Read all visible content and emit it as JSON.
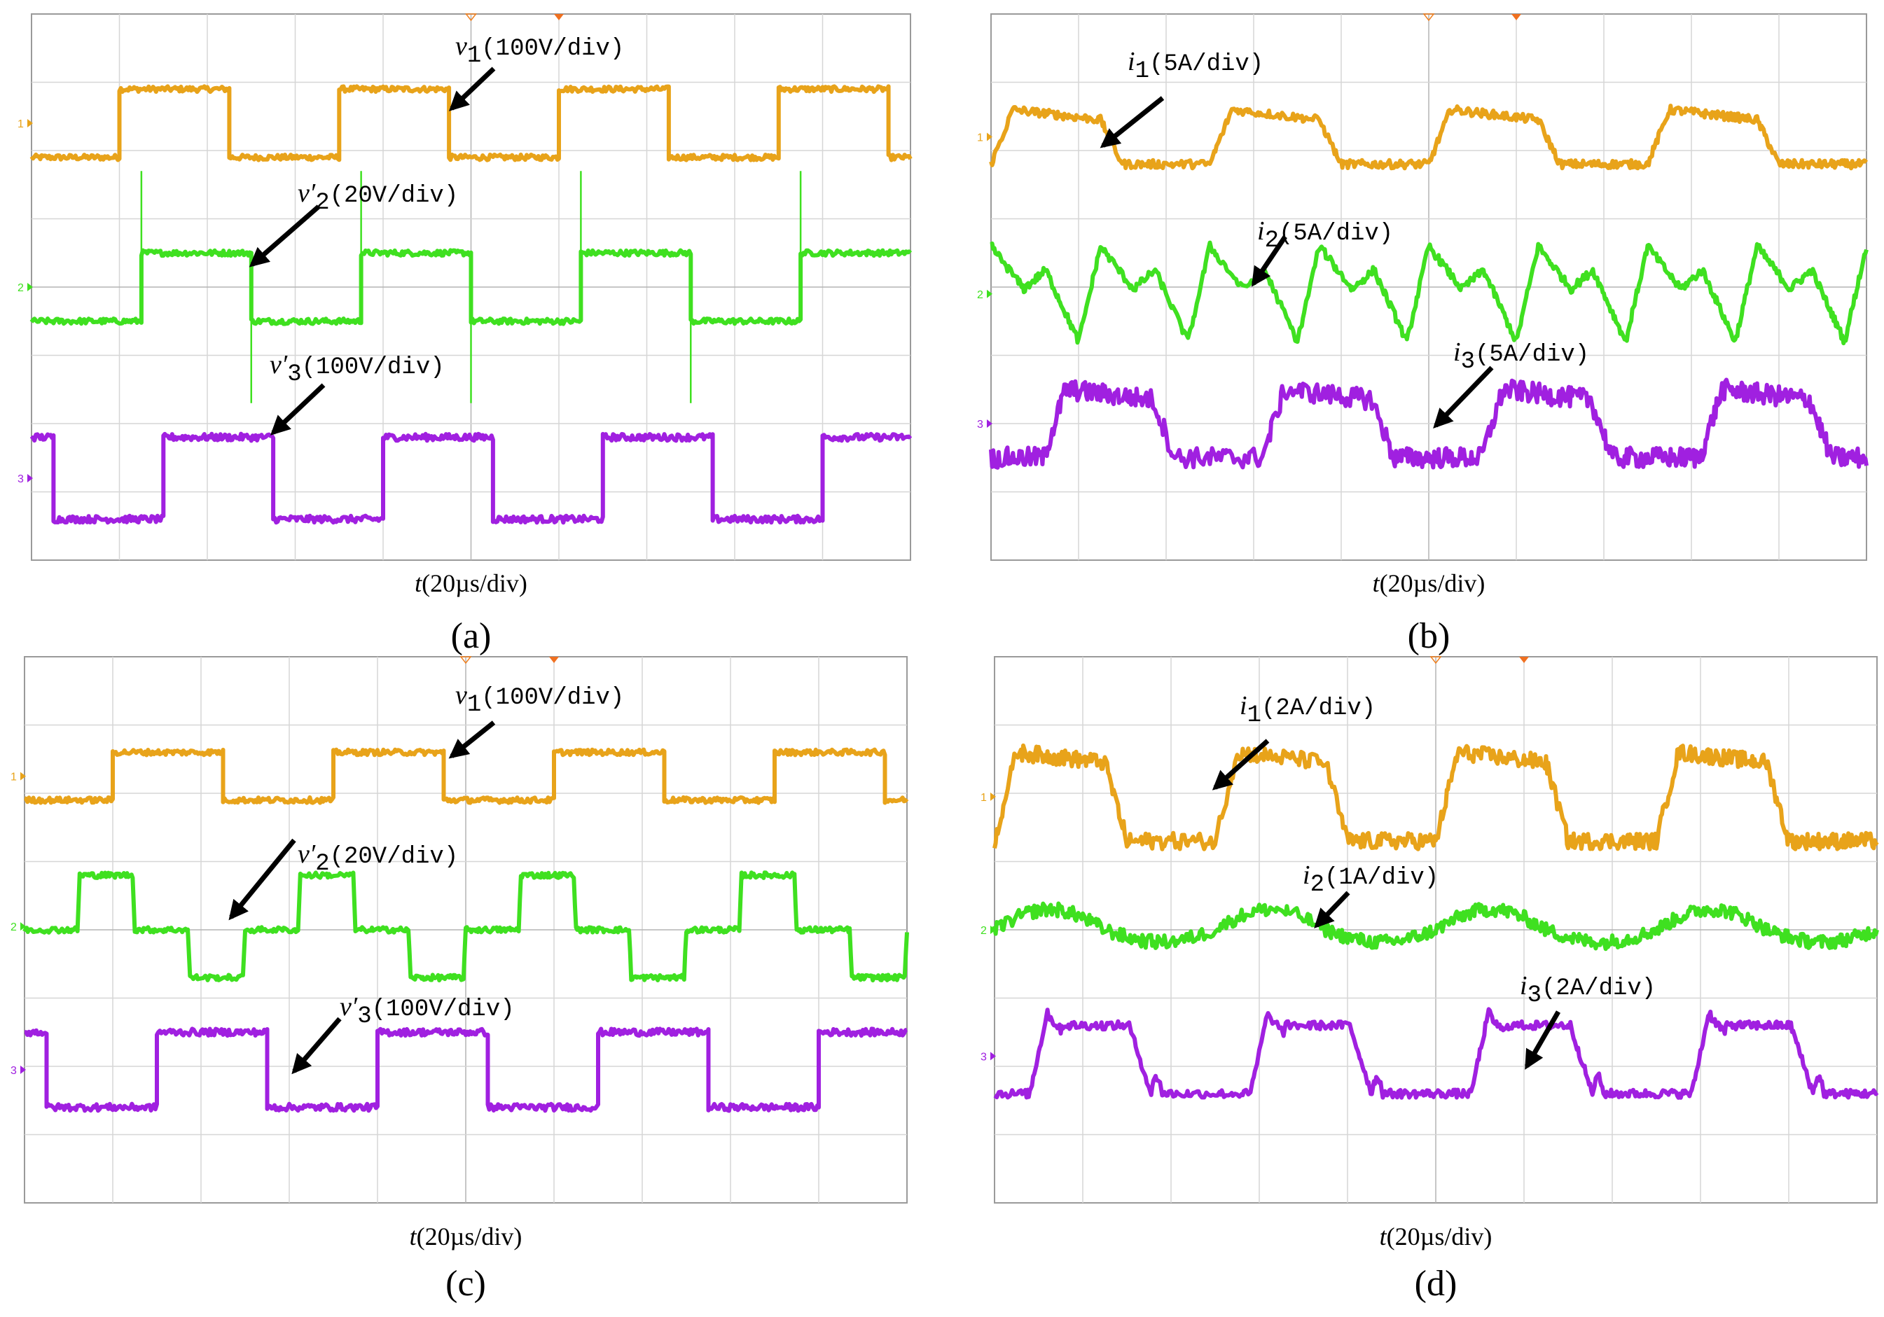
{
  "chart_data": [
    {
      "type": "line",
      "panel": "(a)",
      "xlabel_var": "t",
      "xlabel_unit": "(20µs/div)",
      "grid": {
        "x_divisions": 10,
        "y_divisions": 8
      },
      "x": [
        0,
        1.2,
        1.2,
        2.2,
        2.2,
        3.7,
        3.7,
        4.8,
        4.8,
        6.2,
        6.2,
        7.2,
        7.2,
        8.7,
        8.7,
        10
      ],
      "series": [
        {
          "name": "v1",
          "sub": "1",
          "prime": false,
          "unit": "(100V/div)",
          "channel": "1",
          "color": "#e8a31a",
          "levels": {
            "high": 6.9,
            "low": 5.9
          },
          "period_div": 2.5,
          "phase_div": 1.0,
          "duty": 0.5,
          "spike": false,
          "noise": 0.04
        },
        {
          "name": "v2",
          "sub": "2",
          "prime": true,
          "unit": "(20V/div)",
          "channel": "2",
          "color": "#3fe020",
          "levels": {
            "high": 4.5,
            "low": 3.5
          },
          "period_div": 2.5,
          "phase_div": 1.25,
          "duty": 0.5,
          "spike": true,
          "noise": 0.04
        },
        {
          "name": "v3",
          "sub": "3",
          "prime": true,
          "unit": "(100V/div)",
          "channel": "3",
          "color": "#a020e0",
          "levels": {
            "high": 1.8,
            "low": 0.6
          },
          "period_div": 2.5,
          "phase_div": 1.5,
          "duty": 0.5,
          "spike": false,
          "noise": 0.05
        }
      ]
    },
    {
      "type": "line",
      "panel": "(b)",
      "xlabel_var": "t",
      "xlabel_unit": "(20µs/div)",
      "grid": {
        "x_divisions": 10,
        "y_divisions": 8
      },
      "series": [
        {
          "name": "i1",
          "sub": "1",
          "prime": false,
          "unit": "(5A/div)",
          "channel": "1",
          "color": "#e8a31a",
          "shape": "trapezoid",
          "levels": {
            "high": 6.6,
            "low": 5.8
          },
          "period_div": 2.5,
          "phase_div": 0.0,
          "noise": 0.06
        },
        {
          "name": "i2",
          "sub": "2",
          "prime": false,
          "unit": "(5A/div)",
          "channel": "2",
          "color": "#3fe020",
          "shape": "sawtooth",
          "levels": {
            "high": 4.6,
            "low": 3.2
          },
          "period_div": 1.25,
          "phase_div": 0.0,
          "noise": 0.06
        },
        {
          "name": "i3",
          "sub": "3",
          "prime": false,
          "unit": "(5A/div)",
          "channel": "3",
          "color": "#a020e0",
          "shape": "trapezoid",
          "levels": {
            "high": 2.5,
            "low": 1.5
          },
          "period_div": 2.5,
          "phase_div": 0.6,
          "noise": 0.15
        }
      ]
    },
    {
      "type": "line",
      "panel": "(c)",
      "xlabel_var": "t",
      "xlabel_unit": "(20µs/div)",
      "grid": {
        "x_divisions": 10,
        "y_divisions": 8
      },
      "series": [
        {
          "name": "v1",
          "sub": "1",
          "prime": false,
          "unit": "(100V/div)",
          "channel": "1",
          "color": "#e8a31a",
          "levels": {
            "high": 6.6,
            "low": 5.9
          },
          "period_div": 2.5,
          "phase_div": 1.0,
          "duty": 0.5,
          "spike": false,
          "noise": 0.04
        },
        {
          "name": "v2",
          "sub": "2",
          "prime": true,
          "unit": "(20V/div)",
          "channel": "2",
          "color": "#3fe020",
          "shape": "three_level",
          "levels": {
            "high": 4.8,
            "mid": 4.0,
            "low": 3.3
          },
          "period_div": 2.5,
          "phase_div": 0.0,
          "noise": 0.04
        },
        {
          "name": "v3",
          "sub": "3",
          "prime": true,
          "unit": "(100V/div)",
          "channel": "3",
          "color": "#a020e0",
          "levels": {
            "high": 2.5,
            "low": 1.4
          },
          "period_div": 2.5,
          "phase_div": 1.5,
          "duty": 0.5,
          "spike": false,
          "noise": 0.05
        }
      ]
    },
    {
      "type": "line",
      "panel": "(d)",
      "xlabel_var": "t",
      "xlabel_unit": "(20µs/div)",
      "grid": {
        "x_divisions": 10,
        "y_divisions": 8
      },
      "series": [
        {
          "name": "i1",
          "sub": "1",
          "prime": false,
          "unit": "(2A/div)",
          "channel": "1",
          "color": "#e8a31a",
          "shape": "trapezoid",
          "levels": {
            "high": 6.6,
            "low": 5.3
          },
          "period_div": 2.5,
          "phase_div": 0.0,
          "noise": 0.12
        },
        {
          "name": "i2",
          "sub": "2",
          "prime": false,
          "unit": "(1A/div)",
          "channel": "2",
          "color": "#3fe020",
          "shape": "wavy",
          "levels": {
            "high": 4.3,
            "low": 3.7
          },
          "period_div": 2.5,
          "phase_div": 0.0,
          "noise": 0.1
        },
        {
          "name": "i3",
          "sub": "3",
          "prime": false,
          "unit": "(2A/div)",
          "channel": "3",
          "color": "#a020e0",
          "shape": "bump_trap",
          "levels": {
            "high": 2.7,
            "low": 1.6
          },
          "period_div": 2.5,
          "phase_div": 0.4,
          "noise": 0.06
        }
      ]
    }
  ]
}
